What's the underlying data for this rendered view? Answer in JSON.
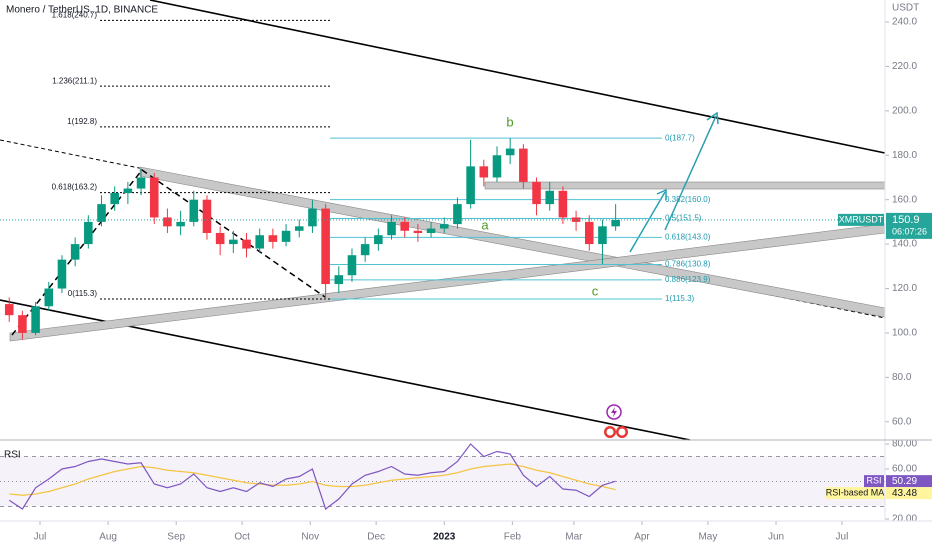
{
  "chart_data": {
    "type": "candlestick",
    "title": "Monero / TetherUS, 1D, BINANCE",
    "axis_unit": "USDT",
    "up_color": "#089981",
    "down_color": "#f23645",
    "x": [
      -14,
      -8,
      -2,
      4,
      10,
      16,
      22,
      28,
      34,
      40,
      46,
      52,
      58,
      64,
      70,
      76,
      82,
      88,
      94,
      100,
      106,
      112,
      118,
      124,
      130,
      136,
      142,
      148,
      154,
      160,
      166,
      172,
      178,
      184,
      190,
      196,
      202,
      208,
      214,
      220,
      226,
      232,
      238,
      244,
      250,
      256,
      262
    ],
    "open": [
      113,
      108,
      100,
      112,
      120,
      133,
      140,
      150,
      158,
      163,
      165,
      170,
      152,
      148,
      150,
      160,
      145,
      140,
      142,
      138,
      144,
      141,
      146,
      148,
      156,
      122,
      126,
      135,
      140,
      144,
      150,
      146,
      145,
      147,
      149,
      158,
      175,
      170,
      180,
      183,
      168,
      158,
      164,
      152,
      150,
      140,
      148
    ],
    "high": [
      116,
      110,
      114,
      123,
      135,
      143,
      153,
      162,
      166,
      168,
      174,
      172,
      156,
      155,
      164,
      162,
      148,
      146,
      145,
      147,
      147,
      149,
      151,
      160,
      158,
      130,
      138,
      143,
      147,
      153,
      152,
      149,
      150,
      152,
      161,
      187,
      178,
      184,
      187.7,
      185,
      170,
      168,
      166,
      155,
      153,
      151,
      158
    ],
    "low": [
      105,
      97,
      99,
      110,
      118,
      130,
      138,
      148,
      155,
      158,
      162,
      149,
      145,
      144,
      148,
      142,
      135,
      136,
      134,
      136,
      138,
      139,
      143,
      145,
      115,
      118,
      123,
      132,
      137,
      142,
      143,
      141,
      143,
      145,
      147,
      156,
      166,
      168,
      176,
      165,
      153,
      155,
      149,
      146,
      137,
      131,
      146
    ],
    "close": [
      108,
      100,
      112,
      120,
      133,
      140,
      150,
      158,
      163,
      165,
      170,
      152,
      148,
      150,
      160,
      145,
      140,
      142,
      138,
      144,
      141,
      146,
      148,
      156,
      122,
      126,
      135,
      140,
      144,
      150,
      146,
      145,
      147,
      149,
      158,
      175,
      170,
      180,
      183,
      168,
      158,
      164,
      152,
      150,
      140,
      148,
      150.9
    ],
    "xlim": [
      -18.2,
      384.6
    ],
    "xticks": [
      {
        "value": 0,
        "label": "Jul"
      },
      {
        "value": 31,
        "label": "Aug"
      },
      {
        "value": 62,
        "label": "Sep"
      },
      {
        "value": 92,
        "label": "Oct"
      },
      {
        "value": 123,
        "label": "Nov"
      },
      {
        "value": 153,
        "label": "Dec"
      },
      {
        "value": 184,
        "label": "2023"
      },
      {
        "value": 215,
        "label": "Feb"
      },
      {
        "value": 243,
        "label": "Mar"
      },
      {
        "value": 274,
        "label": "Apr"
      },
      {
        "value": 304,
        "label": "May"
      },
      {
        "value": 335,
        "label": "Jun"
      },
      {
        "value": 365,
        "label": "Jul"
      }
    ],
    "ylim": [
      51.8,
      249.9
    ],
    "yticks": [
      {
        "value": 60,
        "label": "60.0"
      },
      {
        "value": 80,
        "label": "80.0"
      },
      {
        "value": 100,
        "label": "100.0"
      },
      {
        "value": 120,
        "label": "120.0"
      },
      {
        "value": 140,
        "label": "140.0"
      },
      {
        "value": 160,
        "label": "160.0"
      },
      {
        "value": 180,
        "label": "180.0"
      },
      {
        "value": 200,
        "label": "200.0"
      },
      {
        "value": 220,
        "label": "220.0"
      },
      {
        "value": 240,
        "label": "240.0"
      }
    ],
    "fib_left": [
      {
        "label": "1.618(240.7)",
        "value": 240.7
      },
      {
        "label": "1.236(211.1)",
        "value": 211.1
      },
      {
        "label": "1(192.8)",
        "value": 192.8
      },
      {
        "label": "0.618(163.2)",
        "value": 163.2
      },
      {
        "label": "0(115.3)",
        "value": 115.3
      }
    ],
    "fib_right": [
      {
        "label": "0(187.7)",
        "value": 187.7
      },
      {
        "label": "0.382(160.0)",
        "value": 160.0
      },
      {
        "label": "0.5(151.5)",
        "value": 151.5
      },
      {
        "label": "0.618(143.0)",
        "value": 143.0
      },
      {
        "label": "0.786(130.8)",
        "value": 130.8
      },
      {
        "label": "0.886(123.9)",
        "value": 123.9
      },
      {
        "label": "1(115.3)",
        "value": 115.3
      }
    ],
    "waves": [
      "b",
      "a",
      "c"
    ],
    "symbol": "XMRUSDT",
    "countdown": "06:07:26",
    "rsi": {
      "title": "RSI",
      "values": [
        35,
        28,
        45,
        52,
        60,
        62,
        66,
        68,
        66,
        64,
        65,
        48,
        45,
        48,
        56,
        45,
        42,
        45,
        42,
        49,
        46,
        52,
        54,
        60,
        28,
        36,
        48,
        55,
        58,
        62,
        56,
        55,
        57,
        58,
        66,
        80,
        70,
        74,
        72,
        55,
        46,
        54,
        44,
        43,
        38,
        47,
        50.29
      ],
      "ma_name": "RSI-based MA",
      "ma_values": [
        40,
        39,
        40,
        42,
        45,
        48,
        52,
        55,
        58,
        60,
        62,
        61,
        59,
        58,
        57,
        55,
        53,
        51,
        49,
        48,
        47,
        47,
        48,
        50,
        47,
        46,
        46,
        47,
        49,
        51,
        52,
        53,
        54,
        55,
        57,
        60,
        62,
        63,
        64,
        62,
        59,
        57,
        54,
        51,
        48,
        46,
        43.48
      ],
      "ylim": [
        17.6,
        83.2
      ],
      "yticks": [
        {
          "value": 80,
          "label": "80.00"
        },
        {
          "value": 60,
          "label": "60.00"
        },
        {
          "value": 20,
          "label": "20.00"
        }
      ],
      "levels": [
        70,
        50,
        30
      ]
    }
  }
}
